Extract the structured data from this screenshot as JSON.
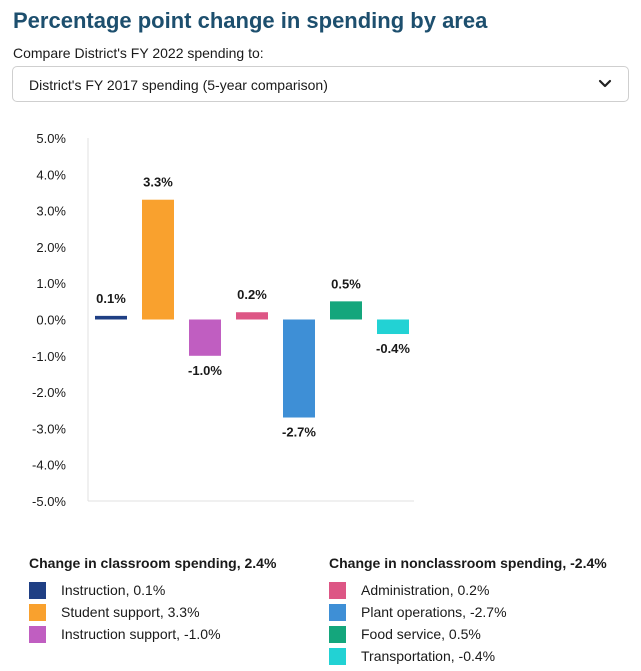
{
  "title": "Percentage point change in spending by area",
  "compare": {
    "label": "Compare District's FY 2022 spending to:",
    "selected": "District's FY 2017 spending (5-year comparison)"
  },
  "chart_data": {
    "type": "bar",
    "categories": [
      "Instruction",
      "Student support",
      "Instruction support",
      "Administration",
      "Plant operations",
      "Food service",
      "Transportation"
    ],
    "values": [
      0.1,
      3.3,
      -1.0,
      0.2,
      -2.7,
      0.5,
      -0.4
    ],
    "value_labels": [
      "0.1%",
      "3.3%",
      "-1.0%",
      "0.2%",
      "-2.7%",
      "0.5%",
      "-0.4%"
    ],
    "colors": [
      "#1f3f84",
      "#f9a12e",
      "#c05ec1",
      "#dd5685",
      "#3e8fd6",
      "#14a67c",
      "#22d2d4"
    ],
    "ylim": [
      -5.0,
      5.0
    ],
    "yticks": [
      "5.0%",
      "4.0%",
      "3.0%",
      "2.0%",
      "1.0%",
      "0.0%",
      "-1.0%",
      "-2.0%",
      "-3.0%",
      "-4.0%",
      "-5.0%"
    ],
    "ytick_values": [
      5,
      4,
      3,
      2,
      1,
      0,
      -1,
      -2,
      -3,
      -4,
      -5
    ],
    "xlabel": "",
    "ylabel": "",
    "grid": false
  },
  "legend": {
    "classroom": {
      "title": "Change in classroom spending, 2.4%",
      "items": [
        {
          "label": "Instruction, 0.1%",
          "color": "#1f3f84"
        },
        {
          "label": "Student support, 3.3%",
          "color": "#f9a12e"
        },
        {
          "label": "Instruction support, -1.0%",
          "color": "#c05ec1"
        }
      ]
    },
    "nonclassroom": {
      "title": "Change in nonclassroom spending, -2.4%",
      "items": [
        {
          "label": "Administration, 0.2%",
          "color": "#dd5685"
        },
        {
          "label": "Plant operations, -2.7%",
          "color": "#3e8fd6"
        },
        {
          "label": "Food service, 0.5%",
          "color": "#14a67c"
        },
        {
          "label": "Transportation, -0.4%",
          "color": "#22d2d4"
        }
      ]
    }
  }
}
